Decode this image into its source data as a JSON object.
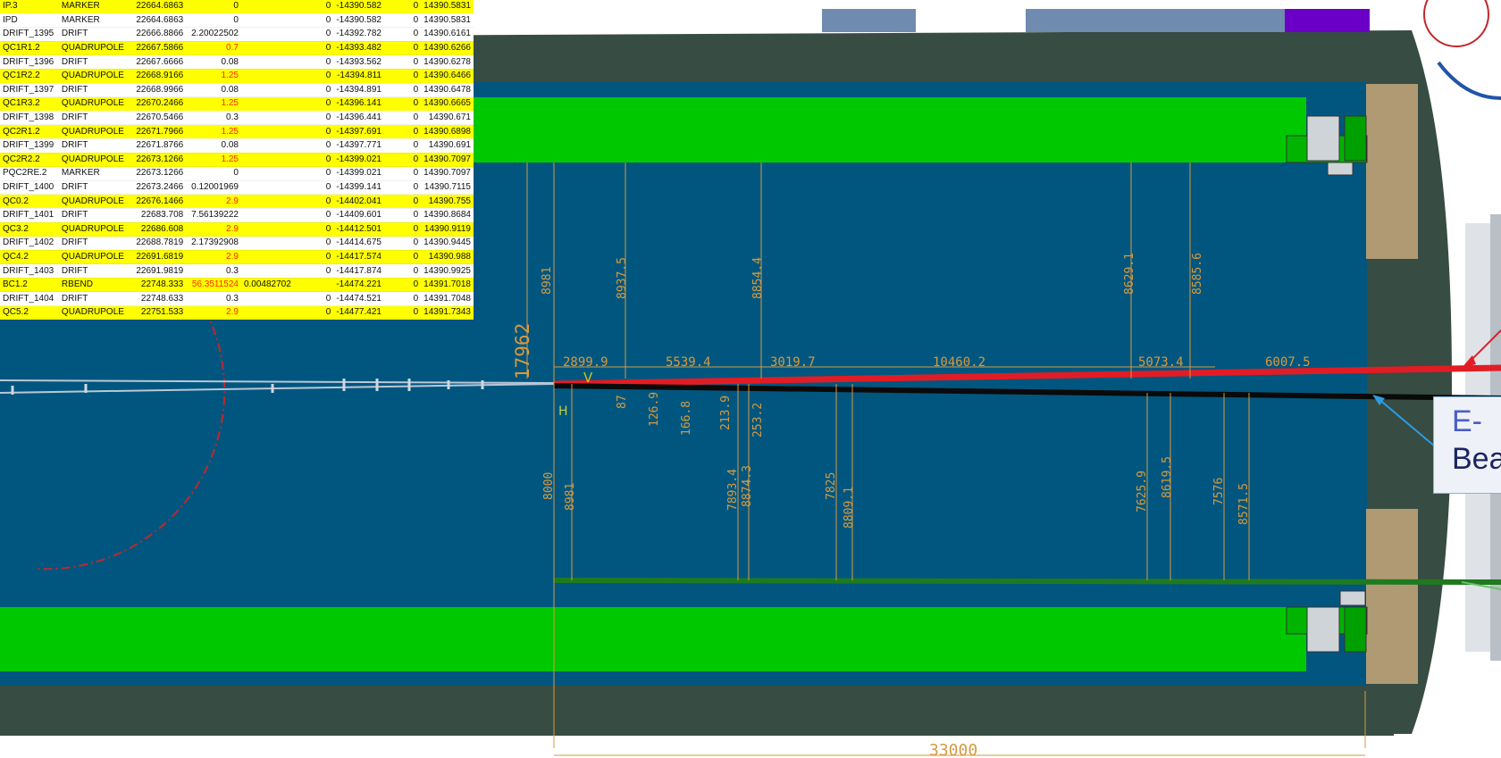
{
  "lattice_table": {
    "rows": [
      {
        "name": "IP.3",
        "type": "MARKER",
        "s": "22664.6863",
        "length": "0",
        "angle": "",
        "col4": "0",
        "x": "-14390.582",
        "col6": "0",
        "z": "14390.5831",
        "highlight": true,
        "length_red": false
      },
      {
        "name": "IPD",
        "type": "MARKER",
        "s": "22664.6863",
        "length": "0",
        "angle": "",
        "col4": "0",
        "x": "-14390.582",
        "col6": "0",
        "z": "14390.5831",
        "highlight": false,
        "length_red": false
      },
      {
        "name": "DRIFT_1395",
        "type": "DRIFT",
        "s": "22666.8866",
        "length": "2.20022502",
        "angle": "",
        "col4": "0",
        "x": "-14392.782",
        "col6": "0",
        "z": "14390.6161",
        "highlight": false,
        "length_red": false
      },
      {
        "name": "QC1R1.2",
        "type": "QUADRUPOLE",
        "s": "22667.5866",
        "length": "0.7",
        "angle": "",
        "col4": "0",
        "x": "-14393.482",
        "col6": "0",
        "z": "14390.6266",
        "highlight": true,
        "length_red": true
      },
      {
        "name": "DRIFT_1396",
        "type": "DRIFT",
        "s": "22667.6666",
        "length": "0.08",
        "angle": "",
        "col4": "0",
        "x": "-14393.562",
        "col6": "0",
        "z": "14390.6278",
        "highlight": false,
        "length_red": false
      },
      {
        "name": "QC1R2.2",
        "type": "QUADRUPOLE",
        "s": "22668.9166",
        "length": "1.25",
        "angle": "",
        "col4": "0",
        "x": "-14394.811",
        "col6": "0",
        "z": "14390.6466",
        "highlight": true,
        "length_red": true
      },
      {
        "name": "DRIFT_1397",
        "type": "DRIFT",
        "s": "22668.9966",
        "length": "0.08",
        "angle": "",
        "col4": "0",
        "x": "-14394.891",
        "col6": "0",
        "z": "14390.6478",
        "highlight": false,
        "length_red": false
      },
      {
        "name": "QC1R3.2",
        "type": "QUADRUPOLE",
        "s": "22670.2466",
        "length": "1.25",
        "angle": "",
        "col4": "0",
        "x": "-14396.141",
        "col6": "0",
        "z": "14390.6665",
        "highlight": true,
        "length_red": true
      },
      {
        "name": "DRIFT_1398",
        "type": "DRIFT",
        "s": "22670.5466",
        "length": "0.3",
        "angle": "",
        "col4": "0",
        "x": "-14396.441",
        "col6": "0",
        "z": "14390.671",
        "highlight": false,
        "length_red": false
      },
      {
        "name": "QC2R1.2",
        "type": "QUADRUPOLE",
        "s": "22671.7966",
        "length": "1.25",
        "angle": "",
        "col4": "0",
        "x": "-14397.691",
        "col6": "0",
        "z": "14390.6898",
        "highlight": true,
        "length_red": true
      },
      {
        "name": "DRIFT_1399",
        "type": "DRIFT",
        "s": "22671.8766",
        "length": "0.08",
        "angle": "",
        "col4": "0",
        "x": "-14397.771",
        "col6": "0",
        "z": "14390.691",
        "highlight": false,
        "length_red": false
      },
      {
        "name": "QC2R2.2",
        "type": "QUADRUPOLE",
        "s": "22673.1266",
        "length": "1.25",
        "angle": "",
        "col4": "0",
        "x": "-14399.021",
        "col6": "0",
        "z": "14390.7097",
        "highlight": true,
        "length_red": true
      },
      {
        "name": "PQC2RE.2",
        "type": "MARKER",
        "s": "22673.1266",
        "length": "0",
        "angle": "",
        "col4": "0",
        "x": "-14399.021",
        "col6": "0",
        "z": "14390.7097",
        "highlight": false,
        "length_red": false
      },
      {
        "name": "DRIFT_1400",
        "type": "DRIFT",
        "s": "22673.2466",
        "length": "0.12001969",
        "angle": "",
        "col4": "0",
        "x": "-14399.141",
        "col6": "0",
        "z": "14390.7115",
        "highlight": false,
        "length_red": false
      },
      {
        "name": "QC0.2",
        "type": "QUADRUPOLE",
        "s": "22676.1466",
        "length": "2.9",
        "angle": "",
        "col4": "0",
        "x": "-14402.041",
        "col6": "0",
        "z": "14390.755",
        "highlight": true,
        "length_red": true
      },
      {
        "name": "DRIFT_1401",
        "type": "DRIFT",
        "s": "22683.708",
        "length": "7.56139222",
        "angle": "",
        "col4": "0",
        "x": "-14409.601",
        "col6": "0",
        "z": "14390.8684",
        "highlight": false,
        "length_red": false
      },
      {
        "name": "QC3.2",
        "type": "QUADRUPOLE",
        "s": "22686.608",
        "length": "2.9",
        "angle": "",
        "col4": "0",
        "x": "-14412.501",
        "col6": "0",
        "z": "14390.9119",
        "highlight": true,
        "length_red": true
      },
      {
        "name": "DRIFT_1402",
        "type": "DRIFT",
        "s": "22688.7819",
        "length": "2.17392908",
        "angle": "",
        "col4": "0",
        "x": "-14414.675",
        "col6": "0",
        "z": "14390.9445",
        "highlight": false,
        "length_red": false
      },
      {
        "name": "QC4.2",
        "type": "QUADRUPOLE",
        "s": "22691.6819",
        "length": "2.9",
        "angle": "",
        "col4": "0",
        "x": "-14417.574",
        "col6": "0",
        "z": "14390.988",
        "highlight": true,
        "length_red": true
      },
      {
        "name": "DRIFT_1403",
        "type": "DRIFT",
        "s": "22691.9819",
        "length": "0.3",
        "angle": "",
        "col4": "0",
        "x": "-14417.874",
        "col6": "0",
        "z": "14390.9925",
        "highlight": false,
        "length_red": false
      },
      {
        "name": "BC1.2",
        "type": "RBEND",
        "s": "22748.333",
        "length": "56.3511524",
        "angle": "0.00482702",
        "col4": "",
        "x": "-14474.221",
        "col6": "0",
        "z": "14391.7018",
        "highlight": true,
        "length_red": true
      },
      {
        "name": "DRIFT_1404",
        "type": "DRIFT",
        "s": "22748.633",
        "length": "0.3",
        "angle": "",
        "col4": "0",
        "x": "-14474.521",
        "col6": "0",
        "z": "14391.7048",
        "highlight": false,
        "length_red": false
      },
      {
        "name": "QC5.2",
        "type": "QUADRUPOLE",
        "s": "22751.533",
        "length": "2.9",
        "angle": "",
        "col4": "0",
        "x": "-14477.421",
        "col6": "0",
        "z": "14391.7343",
        "highlight": true,
        "length_red": true
      }
    ]
  },
  "dimensions": {
    "top_heights": [
      "8981",
      "8937.5",
      "8854.4",
      "8629.1",
      "8585.6"
    ],
    "segments": [
      "2899.9",
      "5539.4",
      "3019.7",
      "10460.2",
      "5073.4",
      "6007.5"
    ],
    "gap_offsets": [
      "87",
      "126.9",
      "166.8",
      "213.9",
      "253.2"
    ],
    "bottom_heights": [
      "8000",
      "8981",
      "7893.4",
      "8874.3",
      "7825",
      "8809.1",
      "7625.9",
      "8619.5",
      "7576",
      "8571.5"
    ],
    "total_height": "17962",
    "total_length": "33000"
  },
  "beam_markers": {
    "vertical": "V",
    "horizontal": "H"
  },
  "callout": {
    "line1": "E-",
    "line2": "Bea"
  },
  "colors": {
    "floor": "#01567f",
    "wall": "#374c42",
    "magnet": "#00c800",
    "beam_red": "#e21c24",
    "beam_black": "#0a0a0a",
    "beam_green": "#1f7a1f",
    "dimension": "#d79a3f",
    "table_highlight": "#ffff00"
  }
}
